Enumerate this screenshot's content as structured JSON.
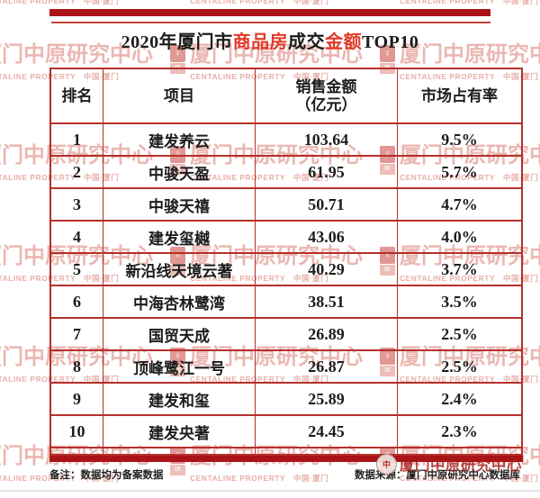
{
  "title": {
    "parts": [
      {
        "text": "2020年厦门市",
        "red": false
      },
      {
        "text": "商品房",
        "red": true
      },
      {
        "text": "成交",
        "red": false
      },
      {
        "text": "金额",
        "red": true
      },
      {
        "text": "TOP10",
        "red": false
      }
    ]
  },
  "table": {
    "headers": {
      "rank": "排名",
      "project": "项目",
      "sales_line1": "销售金额",
      "sales_line2": "（亿元）",
      "share": "市场占有率"
    },
    "rows": [
      {
        "rank": "1",
        "project": "建发养云",
        "sales": "103.64",
        "share": "9.5%"
      },
      {
        "rank": "2",
        "project": "中骏天盈",
        "sales": "61.95",
        "share": "5.7%"
      },
      {
        "rank": "3",
        "project": "中骏天禧",
        "sales": "50.71",
        "share": "4.7%"
      },
      {
        "rank": "4",
        "project": "建发玺樾",
        "sales": "43.06",
        "share": "4.0%"
      },
      {
        "rank": "5",
        "project": "新沿线天境云著",
        "sales": "40.29",
        "share": "3.7%"
      },
      {
        "rank": "6",
        "project": "中海杏林鹭湾",
        "sales": "38.51",
        "share": "3.5%"
      },
      {
        "rank": "7",
        "project": "国贸天成",
        "sales": "26.89",
        "share": "2.5%"
      },
      {
        "rank": "8",
        "project": "顶峰鹭江一号",
        "sales": "26.87",
        "share": "2.5%"
      },
      {
        "rank": "9",
        "project": "建发和玺",
        "sales": "25.89",
        "share": "2.4%"
      },
      {
        "rank": "10",
        "project": "建发央著",
        "sales": "24.45",
        "share": "2.3%"
      }
    ]
  },
  "footer": {
    "note": "备注：数据均为备案数据",
    "source": "数据来源：厦门中原研究中心数据库"
  },
  "watermark": {
    "text": "厦门中原研究中心",
    "subtext": "CENTALINE PROPERTY　中国·厦门",
    "overlay_text": "厦门中原研究中心",
    "logo_top_glyph": "♀",
    "logo_bottom_glyph": "IX",
    "stamp_glyph": "中"
  },
  "colors": {
    "bar_red": "#ab1318",
    "border_red": "#b5302a",
    "title_red": "#e03a2a",
    "text_black": "#1c1c1c",
    "divider_gray": "#e4e4e4"
  },
  "chart_data": {
    "type": "table",
    "title": "2020年厦门市商品房成交金额TOP10",
    "columns": [
      "排名",
      "项目",
      "销售金额（亿元）",
      "市场占有率"
    ],
    "rows": [
      [
        1,
        "建发养云",
        103.64,
        "9.5%"
      ],
      [
        2,
        "中骏天盈",
        61.95,
        "5.7%"
      ],
      [
        3,
        "中骏天禧",
        50.71,
        "4.7%"
      ],
      [
        4,
        "建发玺樾",
        43.06,
        "4.0%"
      ],
      [
        5,
        "新沿线天境云著",
        40.29,
        "3.7%"
      ],
      [
        6,
        "中海杏林鹭湾",
        38.51,
        "3.5%"
      ],
      [
        7,
        "国贸天成",
        26.89,
        "2.5%"
      ],
      [
        8,
        "顶峰鹭江一号",
        26.87,
        "2.5%"
      ],
      [
        9,
        "建发和玺",
        25.89,
        "2.4%"
      ],
      [
        10,
        "建发央著",
        24.45,
        "2.3%"
      ]
    ]
  }
}
